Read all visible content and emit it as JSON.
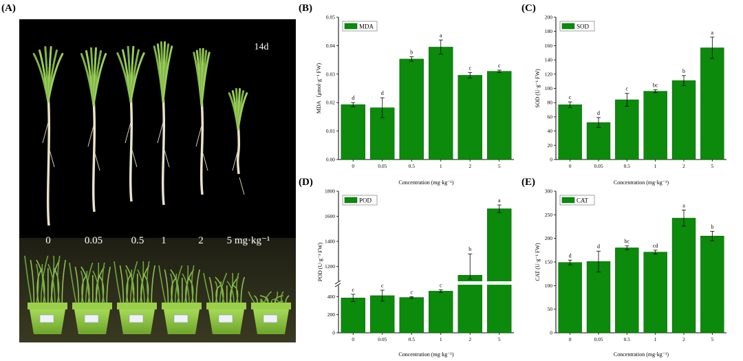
{
  "panels": {
    "A": "(A)",
    "B": "(B)",
    "C": "(C)",
    "D": "(D)",
    "E": "(E)"
  },
  "photo": {
    "day_label": "14d",
    "concentration_labels": [
      "0",
      "0.05",
      "0.5",
      "1",
      "2",
      "5 mg·kg⁻¹"
    ]
  },
  "colors": {
    "bar": "#0b8a0b",
    "bar_edge": "#065c06",
    "photo_bg": "#000000",
    "pot": "#8ec63f"
  },
  "chart_data": [
    {
      "id": "B",
      "type": "bar",
      "legend": "MDA",
      "categories": [
        "0",
        "0.05",
        "0.5",
        "1",
        "2",
        "5"
      ],
      "values": [
        0.0193,
        0.0182,
        0.0353,
        0.0395,
        0.0296,
        0.031
      ],
      "errors": [
        0.0007,
        0.0035,
        0.0008,
        0.0025,
        0.001,
        0.0004
      ],
      "letters": [
        "d",
        "d",
        "b",
        "a",
        "c",
        "c"
      ],
      "ylim": [
        0,
        0.05
      ],
      "yticks": [
        "0.00",
        "0.01",
        "0.02",
        "0.03",
        "0.04",
        "0.05"
      ],
      "ylabel": "MDA（μmol·g⁻¹ FW)",
      "xlabel": "Concentration (mg·kg⁻¹)"
    },
    {
      "id": "C",
      "type": "bar",
      "legend": "SOD",
      "categories": [
        "0",
        "0.05",
        "0.5",
        "1",
        "2",
        "5"
      ],
      "values": [
        77,
        52,
        84,
        96,
        111,
        157
      ],
      "errors": [
        4,
        7,
        9,
        2,
        7,
        15
      ],
      "letters": [
        "c",
        "d",
        "c",
        "bc",
        "b",
        "a"
      ],
      "ylim": [
        0,
        200
      ],
      "yticks": [
        "0",
        "20",
        "40",
        "60",
        "80",
        "100",
        "120",
        "140",
        "160",
        "180",
        "200"
      ],
      "ylabel": "SOD (U·g⁻¹ FW)",
      "xlabel": "Concentration (mg·kg⁻¹)"
    },
    {
      "id": "D",
      "type": "bar",
      "legend": "POD",
      "broken_axis": true,
      "categories": [
        "0",
        "0.05",
        "0.5",
        "1",
        "2",
        "5"
      ],
      "values": [
        385,
        410,
        390,
        460,
        1130,
        1660
      ],
      "errors": [
        40,
        60,
        8,
        15,
        170,
        30
      ],
      "letters": [
        "c",
        "c",
        "c",
        "c",
        "b",
        "a"
      ],
      "ylim": [
        0,
        1800
      ],
      "yticks_lower": [
        "0",
        "200",
        "400"
      ],
      "yticks_upper": [
        "1200",
        "1400",
        "1600",
        "1800"
      ],
      "ylabel": "POD (U·g⁻¹ FW)",
      "xlabel": "Concentration (mg·kg⁻¹)"
    },
    {
      "id": "E",
      "type": "bar",
      "legend": "CAT",
      "categories": [
        "0",
        "0.05",
        "0.5",
        "1",
        "2",
        "5"
      ],
      "values": [
        149,
        151,
        180,
        171,
        243,
        205
      ],
      "errors": [
        5,
        22,
        4,
        4,
        17,
        10
      ],
      "letters": [
        "d",
        "d",
        "bc",
        "cd",
        "a",
        "b"
      ],
      "ylim": [
        0,
        300
      ],
      "yticks": [
        "0",
        "50",
        "100",
        "150",
        "200",
        "250",
        "300"
      ],
      "ylabel": "CAT (U·g⁻¹ FW)",
      "xlabel": "Concentration (mg·kg⁻¹)"
    }
  ]
}
